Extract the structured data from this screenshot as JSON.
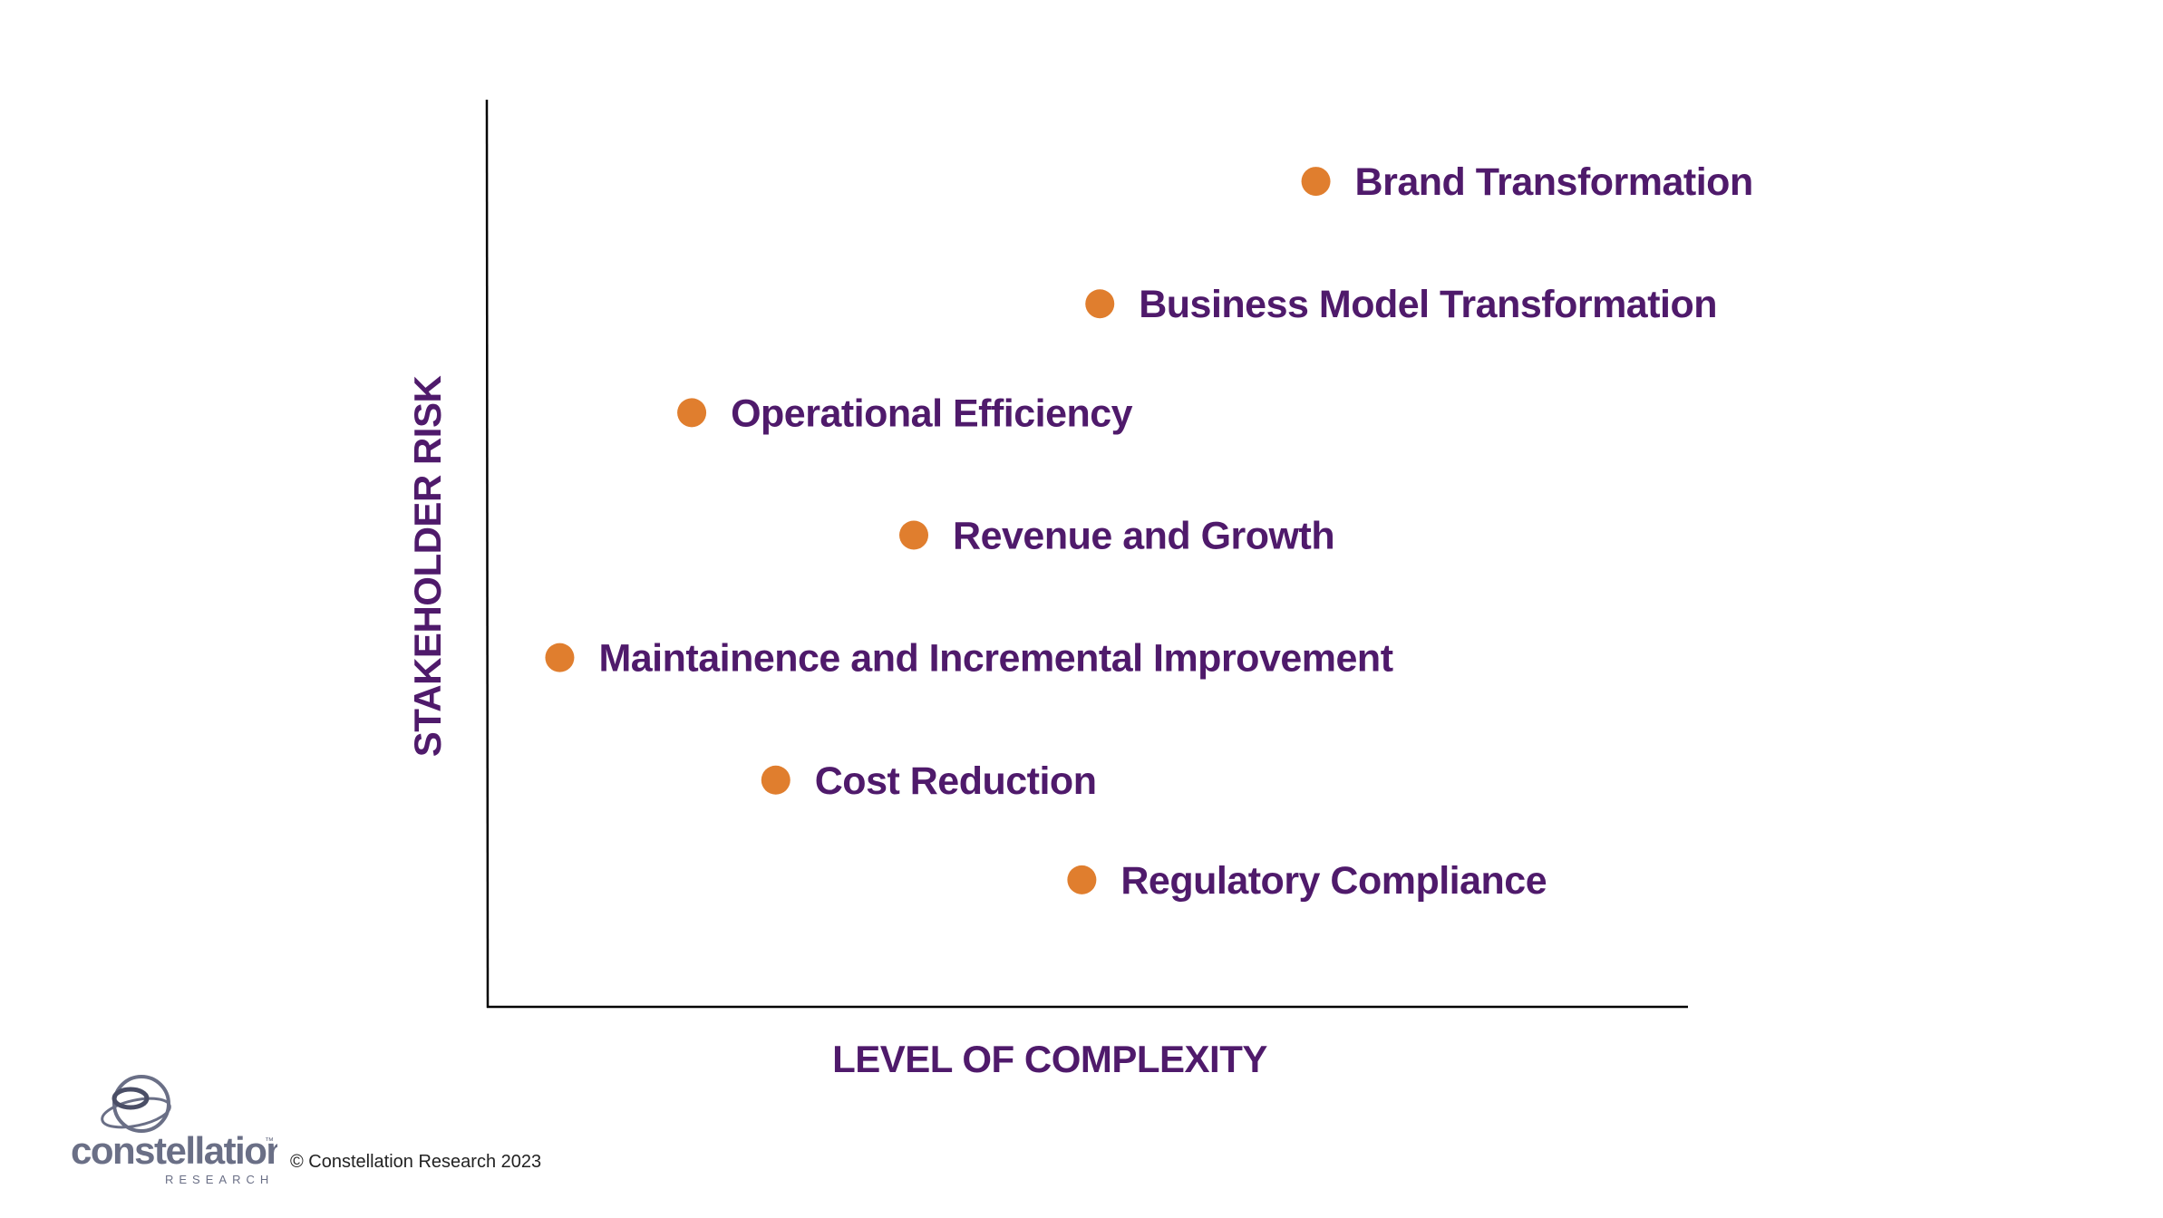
{
  "colors": {
    "label": "#4f1a6b",
    "marker": "#e07e2e",
    "axis": "#000000",
    "logo_ring": "#6a6f86",
    "logo_text": "#6a6f86"
  },
  "chart_data": {
    "type": "scatter",
    "title": "",
    "xlabel": "LEVEL OF COMPLEXITY",
    "ylabel": "STAKEHOLDER RISK",
    "xlim": [
      0,
      10
    ],
    "ylim": [
      0,
      10
    ],
    "grid": false,
    "legend": "none",
    "points": [
      {
        "label": "Brand Transformation",
        "x": 6.9,
        "y": 9.1
      },
      {
        "label": "Business Model Transformation",
        "x": 5.1,
        "y": 7.75
      },
      {
        "label": "Operational Efficiency",
        "x": 1.7,
        "y": 6.55
      },
      {
        "label": "Revenue and Growth",
        "x": 3.55,
        "y": 5.2
      },
      {
        "label": "Maintainence and Incremental Improvement",
        "x": 0.6,
        "y": 3.85
      },
      {
        "label": "Cost Reduction",
        "x": 2.4,
        "y": 2.5
      },
      {
        "label": "Regulatory Compliance",
        "x": 4.95,
        "y": 1.4
      }
    ]
  },
  "footer": {
    "copyright": "© Constellation Research 2023",
    "logo_text": "constellation",
    "logo_subtext": "RESEARCH",
    "logo_tm": "™"
  }
}
